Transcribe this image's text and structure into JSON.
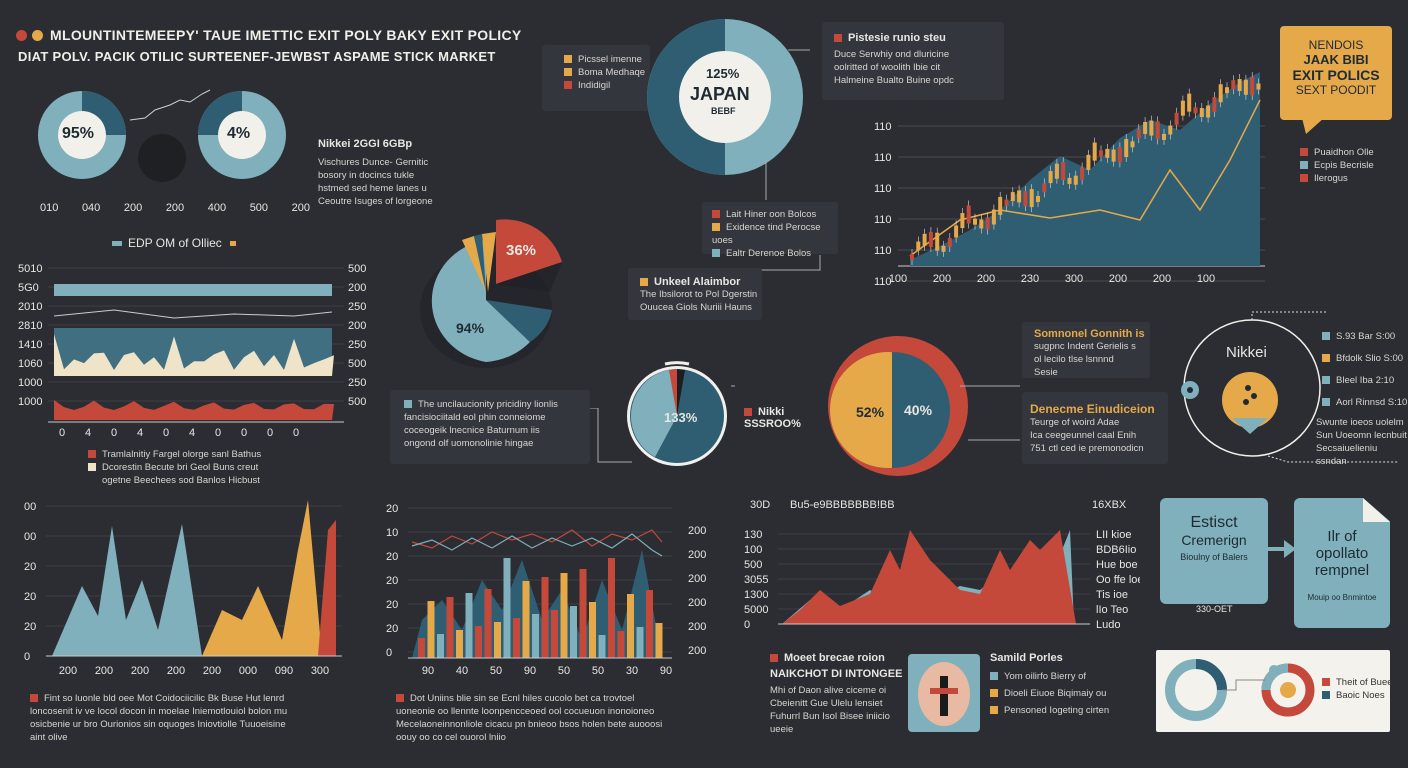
{
  "colors": {
    "teal": "#7fb0bb",
    "navy": "#2f5e73",
    "gold": "#e5a94a",
    "red": "#c4493a",
    "cream": "#efe3c8",
    "bg": "#2b2d33",
    "panel": "#33363d"
  },
  "header": {
    "line1": "MLOUNTINTEMEEPY' TAUE IMETTIC EXIT POLY BAKY EXIT POLICY",
    "line2": "DIAT POLV. PACIK OTILIC SURTEENEF-JEWBST ASPAME STICK MARKET"
  },
  "top_left_donuts": {
    "left_pct": "95%",
    "right_pct": "4%",
    "ticks": [
      "010",
      "040",
      "200",
      "200",
      "400",
      "500",
      "200"
    ]
  },
  "nikkei_note": {
    "title": "Nikkei 2GGI 6GBp",
    "lines": [
      "Vischures Dunce- Gernitic",
      "bosory in docincs tukle",
      "hstmed sed heme lanes u",
      "Ceoutre Isuges of lorgeone"
    ]
  },
  "top_pie": {
    "legend": [
      "Picssel imenne",
      "Boma Medhaqe",
      "Indidigil"
    ],
    "pct": "125%",
    "label": "JAPAN",
    "sub": "BEBF"
  },
  "pietro": {
    "title": "Pistesie runio steu",
    "lines": [
      "Duce Serwhiy ond dluricine",
      "oolritted of woolith lbie cit",
      "Halmeine Bualto Buine opdc"
    ]
  },
  "mini_legend": {
    "items": [
      "Lait Hiner oon Bolcos",
      "Exidence tind Perocse uoes",
      "Ealtr Derenoe Bolos"
    ]
  },
  "top_note": {
    "lines": [
      "NENDOIS",
      "JAAK BIBI",
      "EXIT POLICS",
      "SEXT POODIT"
    ]
  },
  "candle_chart_legend": [
    "Puaidhon Olle",
    "Ecpis Becrisle",
    "Ilerogus"
  ],
  "unkel": {
    "title": "Unkeel Alaimbor",
    "lines": [
      "The Ibsilorot to Pol Dgerstin",
      "Ouucea Giols Nuriii Hauns"
    ]
  },
  "edp": {
    "title": "EDP OM of Olliec"
  },
  "area_chart_left": {
    "yleft": [
      "5010",
      "5G0",
      "2010",
      "2810",
      "1410",
      "1060",
      "1000",
      "1000"
    ],
    "yright": [
      "500",
      "200",
      "250",
      "200",
      "250",
      "500",
      "250",
      "500"
    ],
    "xlabels": [
      "0",
      "4",
      "0",
      "4",
      "0",
      "4",
      "0",
      "0",
      "0",
      "0"
    ],
    "legend": [
      "Tramlalnitiy Fargel olorge sanl Bathus",
      "Dcorestin Becute bri Geol Buns creut",
      "ogetne Beechees sod Banlos Hicbust"
    ]
  },
  "big_pie": {
    "a": "36%",
    "b": "94%"
  },
  "mid_text": {
    "lines": [
      "The uncilaucionity pricidiny lionlis",
      "fancisiociitald eol phin conneiome",
      "coceogeik lnecnice Baturnum iis",
      "ongond olf uomonolinie hingae"
    ]
  },
  "mid_donut": {
    "pct": "133%",
    "label_title": "Nikki",
    "label_sub": "SSSROO%"
  },
  "gold_pie": {
    "a": "52%",
    "b": "40%"
  },
  "semiconductor": {
    "title": "Somnonel Gonnith is",
    "lines": [
      "sugpnc Indent Gerielis s",
      "ol lecilo tlse lsnnnd",
      "Sesie"
    ]
  },
  "demand": {
    "title": "Denecme Einudiceion",
    "lines": [
      "Teurge of woird Adae",
      "Ica ceegeunnel caal Enih",
      "751 ctl ced ie premonodicn"
    ]
  },
  "nikkei_ring": {
    "label": "Nikkei",
    "legend": [
      "S.93 Bar S:00",
      "Bfdolk Slio S:00",
      "Bleel Iba 2:10",
      "Aorl Rinnsd S:10"
    ],
    "notes": [
      "Swunte ioeos uolelm",
      "Sun Uoeomn lecnbuit",
      "Secsaiuelieniu ssndan"
    ]
  },
  "bottom_left": {
    "ylabels": [
      "00",
      "00",
      "20",
      "20",
      "20",
      "0"
    ],
    "xlabels": [
      "200",
      "200",
      "200",
      "200",
      "200",
      "000",
      "090",
      "300"
    ],
    "note": [
      "Fint so luonle bld oee Mot Coidociicilic Bk Buse Hut lenrd",
      "loncosenit iv ve locol docon in moelae Iniemotlouiol bolon mu",
      "osicbenie ur bro Ourionios sin oquoges Iniovtiolle Tuuoeisine",
      "aint olive"
    ]
  },
  "bottom_mid": {
    "yleft": [
      "20",
      "10",
      "20",
      "20",
      "20",
      "20",
      "0"
    ],
    "yright": [
      "200",
      "200",
      "200",
      "200",
      "200",
      "200"
    ],
    "xlabels": [
      "90",
      "40",
      "50",
      "90",
      "50",
      "50",
      "30",
      "90"
    ],
    "note": [
      "Dot Uniins blie sin se Ecnl hiles cucolo bet ca trovtoel",
      "uoneonie oo llennte loonpencceoed ool cocueuon inonoioneo",
      "Mecelaoneinnonliole cicacu pn bnieoo bsos holen bete auooosi",
      "oouy oo co cel ouorol lniio"
    ]
  },
  "bottom_right_chart": {
    "title": "Bu5-e9BBBBBBB!BB",
    "left_top": "30D",
    "right_top": "16XBX",
    "yleft": [
      "130",
      "100",
      "500",
      "3055",
      "1300",
      "5000",
      "0"
    ],
    "yright": [
      "LII kioe",
      "BDB6Iio",
      "Hue boe",
      "Oo ffe loe",
      "Tis ioe",
      "lIo Teo",
      "Ludo"
    ]
  },
  "cards": {
    "left_title": "Estisct",
    "left_mid": "Cremerign",
    "left_sub": "Bioulny of Balers",
    "left_foot": "330-OET",
    "right_lines": [
      "Ilr of",
      "opollato",
      "rempnel"
    ],
    "right_foot": "Mouip oo Bnmintoe"
  },
  "market": {
    "title1": "Moeet brecae roion",
    "title2": "NAIKCHOT DI INTONGEE",
    "lines": [
      "Mhi of Daon alive ciceme oi",
      "Cbeienitt Gue Ulelu lensiet",
      "Fuhurrl Bun Isol Bisee iniicio",
      "ueeie"
    ]
  },
  "samid": {
    "title": "Samild Porles",
    "items": [
      "Yom oilirfo Bierry of",
      "Dioeli Eiuoe Biqimaiy ou",
      "Pensoned Iogeting cirten"
    ]
  },
  "bottom_right_mini": {
    "legend": [
      "Theit of Buee",
      "Baoic Noes"
    ]
  }
}
